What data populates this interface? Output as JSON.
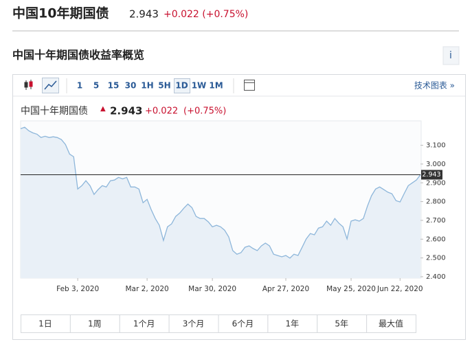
{
  "header": {
    "title": "中国10年期国债",
    "price": "2.943",
    "change": "+0.022 (+0.75%)"
  },
  "section_title": "中国十年期国债收益率概览",
  "info_icon": "i",
  "toolbar": {
    "intervals": [
      "1",
      "5",
      "15",
      "30",
      "1H",
      "5H",
      "1D",
      "1W",
      "1M"
    ],
    "selected": "1D",
    "link": "技术图表 »"
  },
  "chart_data": {
    "type": "area",
    "name": "中国十年期国债",
    "price": 2.943,
    "change": "+0.022",
    "change_pct": "(+0.75%)",
    "color": "#8db6da",
    "fill": "#e9f0f7",
    "categories": [
      null,
      null,
      null,
      null,
      null,
      null,
      null,
      null,
      null,
      null,
      null,
      null,
      null,
      null,
      "Feb 3, 2020",
      null,
      null,
      null,
      null,
      null,
      null,
      null,
      null,
      null,
      null,
      null,
      null,
      null,
      null,
      null,
      null,
      "Mar 2, 2020",
      null,
      null,
      null,
      null,
      null,
      null,
      null,
      null,
      null,
      null,
      null,
      null,
      null,
      null,
      null,
      "Mar 30, 2020",
      null,
      null,
      null,
      null,
      null,
      null,
      null,
      null,
      null,
      null,
      null,
      null,
      null,
      null,
      null,
      null,
      null,
      "Apr 27, 2020",
      null,
      null,
      null,
      null,
      null,
      null,
      null,
      null,
      null,
      null,
      null,
      null,
      null,
      null,
      null,
      "May 25, 2020",
      null,
      null,
      null,
      null,
      null,
      null,
      null,
      null,
      null,
      null,
      null,
      "Jun 22, 2020",
      null,
      null,
      null,
      null,
      null
    ],
    "values": [
      3.188,
      3.196,
      3.177,
      3.166,
      3.159,
      3.141,
      3.148,
      3.141,
      3.145,
      3.141,
      3.13,
      3.104,
      3.053,
      3.039,
      2.867,
      2.885,
      2.911,
      2.885,
      2.838,
      2.864,
      2.885,
      2.878,
      2.911,
      2.915,
      2.929,
      2.921,
      2.929,
      2.878,
      2.878,
      2.867,
      2.794,
      2.812,
      2.758,
      2.71,
      2.674,
      2.593,
      2.666,
      2.681,
      2.721,
      2.739,
      2.765,
      2.787,
      2.768,
      2.721,
      2.71,
      2.71,
      2.692,
      2.666,
      2.674,
      2.666,
      2.648,
      2.612,
      2.539,
      2.52,
      2.528,
      2.557,
      2.564,
      2.55,
      2.539,
      2.564,
      2.579,
      2.564,
      2.52,
      2.513,
      2.506,
      2.513,
      2.499,
      2.52,
      2.513,
      2.557,
      2.601,
      2.63,
      2.623,
      2.659,
      2.666,
      2.696,
      2.674,
      2.71,
      2.685,
      2.666,
      2.601,
      2.696,
      2.703,
      2.696,
      2.71,
      2.776,
      2.831,
      2.867,
      2.878,
      2.864,
      2.85,
      2.842,
      2.805,
      2.798,
      2.842,
      2.885,
      2.9,
      2.915,
      2.943
    ],
    "ylim": [
      2.4,
      3.23
    ],
    "yticks": [
      {
        "value": 2.4,
        "label": "2.400"
      },
      {
        "value": 2.5,
        "label": "2.500"
      },
      {
        "value": 2.6,
        "label": "2.600"
      },
      {
        "value": 2.7,
        "label": "2.700"
      },
      {
        "value": 2.8,
        "label": "2.800"
      },
      {
        "value": 2.9,
        "label": "2.900"
      },
      {
        "value": 3.0,
        "label": "3.000"
      },
      {
        "value": 3.1,
        "label": "3.100"
      }
    ]
  },
  "ranges": [
    "1日",
    "1周",
    "1个月",
    "3个月",
    "6个月",
    "1年",
    "5年",
    "最大值"
  ]
}
